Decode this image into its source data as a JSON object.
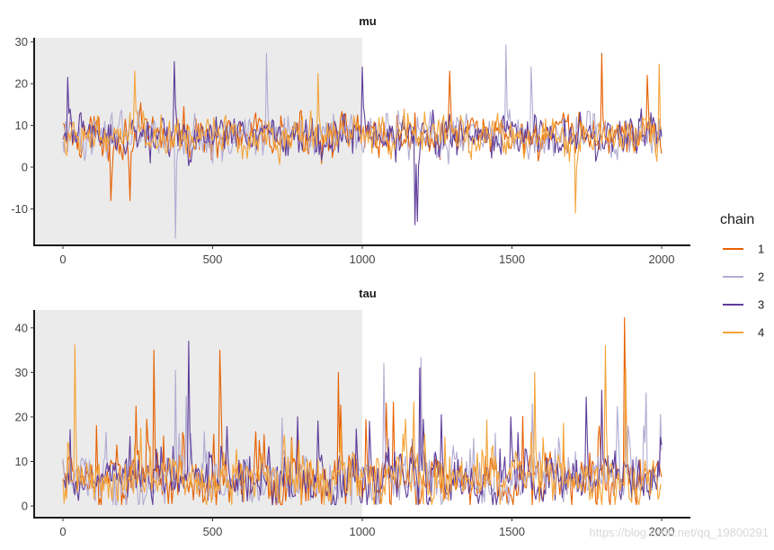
{
  "chart_data": [
    {
      "type": "line",
      "title": "mu",
      "xlabel": "",
      "ylabel": "",
      "xlim": [
        0,
        2000
      ],
      "ylim": [
        -17,
        31
      ],
      "x_ticks": [
        0,
        500,
        1000,
        1500,
        2000
      ],
      "y_ticks": [
        -10,
        0,
        10,
        20,
        30
      ],
      "warmup_region": [
        0,
        1000
      ],
      "grid": false,
      "trace_summary": {
        "center": 7.5,
        "spread": 4.5
      },
      "series": [
        {
          "name": "1",
          "color": "#E66101",
          "extremes": [
            [
              160,
              -8
            ],
            [
              225,
              -8
            ],
            [
              1290,
              23
            ],
            [
              1800,
              27.3
            ],
            [
              1950,
              22
            ]
          ]
        },
        {
          "name": "2",
          "color": "#B2ABD2",
          "extremes": [
            [
              375,
              -17
            ],
            [
              680,
              27.3
            ],
            [
              1480,
              29.3
            ],
            [
              1565,
              24
            ]
          ]
        },
        {
          "name": "3",
          "color": "#5E3C99",
          "extremes": [
            [
              15,
              21.5
            ],
            [
              370,
              25.3
            ],
            [
              1175,
              -13.8
            ],
            [
              1185,
              -13
            ],
            [
              1000,
              24
            ]
          ]
        },
        {
          "name": "4",
          "color": "#F4A43A",
          "extremes": [
            [
              240,
              23
            ],
            [
              850,
              22.5
            ],
            [
              1710,
              -11
            ],
            [
              1990,
              24.7
            ]
          ]
        }
      ]
    },
    {
      "type": "line",
      "title": "tau",
      "xlabel": "",
      "ylabel": "",
      "xlim": [
        0,
        2000
      ],
      "ylim": [
        -1,
        44
      ],
      "x_ticks": [
        0,
        500,
        1000,
        1500,
        2000
      ],
      "y_ticks": [
        0,
        10,
        20,
        30,
        40
      ],
      "warmup_region": [
        0,
        1000
      ],
      "grid": false,
      "trace_summary": {
        "center": 5.5,
        "spread": 5
      },
      "series": [
        {
          "name": "1",
          "color": "#E66101",
          "extremes": [
            [
              305,
              35
            ],
            [
              525,
              35
            ],
            [
              1875,
              42.3
            ],
            [
              920,
              30
            ]
          ]
        },
        {
          "name": "2",
          "color": "#B2ABD2",
          "extremes": [
            [
              375,
              30.5
            ],
            [
              1070,
              32
            ],
            [
              1195,
              33.3
            ],
            [
              1995,
              20.6
            ]
          ]
        },
        {
          "name": "3",
          "color": "#5E3C99",
          "extremes": [
            [
              420,
              37
            ],
            [
              1190,
              31
            ],
            [
              1800,
              26
            ]
          ]
        },
        {
          "name": "4",
          "color": "#F4A43A",
          "extremes": [
            [
              40,
              36.2
            ],
            [
              1575,
              30
            ],
            [
              1810,
              36
            ],
            [
              1880,
              31
            ]
          ]
        }
      ]
    }
  ],
  "legend": {
    "title": "chain",
    "position": "right",
    "items": [
      {
        "label": "1",
        "color": "#E66101"
      },
      {
        "label": "2",
        "color": "#B2ABD2"
      },
      {
        "label": "3",
        "color": "#5E3C99"
      },
      {
        "label": "4",
        "color": "#F4A43A"
      }
    ]
  },
  "watermark": "https://blog.csdn.net/qq_19800291"
}
